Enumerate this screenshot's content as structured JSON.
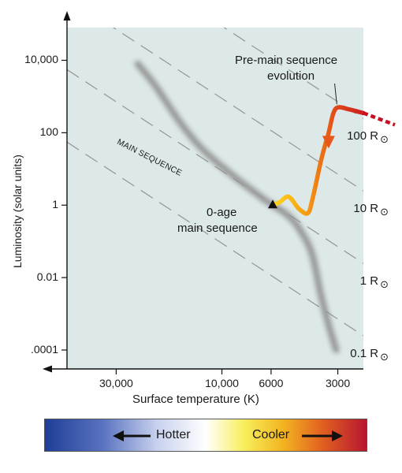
{
  "chart_data": {
    "type": "line",
    "xlabel": "Surface temperature (K)",
    "ylabel": "Luminosity (solar units)",
    "x_scale": "log, reversed",
    "y_scale": "log",
    "x_ticks": [
      {
        "value": 30000,
        "label": "30,000"
      },
      {
        "value": 10000,
        "label": "10,000"
      },
      {
        "value": 6000,
        "label": "6000"
      },
      {
        "value": 3000,
        "label": "3000"
      }
    ],
    "y_ticks": [
      {
        "value": 10000,
        "label": "10,000"
      },
      {
        "value": 100,
        "label": "100"
      },
      {
        "value": 1,
        "label": "1"
      },
      {
        "value": 0.01,
        "label": "0.01"
      },
      {
        "value": 0.0001,
        "label": ".0001"
      }
    ],
    "xlim": [
      50000,
      2300
    ],
    "ylim": [
      3e-05,
      80000
    ],
    "main_sequence": {
      "label": "MAIN SEQUENCE",
      "points": [
        {
          "temp": 24000,
          "lum": 8000
        },
        {
          "temp": 20000,
          "lum": 2000
        },
        {
          "temp": 15500,
          "lum": 200
        },
        {
          "temp": 12500,
          "lum": 40
        },
        {
          "temp": 9500,
          "lum": 9
        },
        {
          "temp": 6500,
          "lum": 1.5
        },
        {
          "temp": 5000,
          "lum": 0.5
        },
        {
          "temp": 4300,
          "lum": 0.15
        },
        {
          "temp": 3900,
          "lum": 0.04
        },
        {
          "temp": 3600,
          "lum": 0.004
        },
        {
          "temp": 3300,
          "lum": 0.0005
        },
        {
          "temp": 3050,
          "lum": 0.0001
        }
      ]
    },
    "radius_lines": [
      {
        "label": "100 R",
        "radius": 100
      },
      {
        "label": "10 R",
        "radius": 10
      },
      {
        "label": "1 R",
        "radius": 1
      },
      {
        "label": "0.1 R",
        "radius": 0.1
      }
    ],
    "radius_unit_symbol": "⊙",
    "evolution_track": {
      "label": "Pre-main sequence evolution",
      "points": [
        {
          "temp": 2300,
          "lum": 350
        },
        {
          "temp": 2700,
          "lum": 450
        },
        {
          "temp": 3000,
          "lum": 500
        },
        {
          "temp": 3150,
          "lum": 330
        },
        {
          "temp": 3300,
          "lum": 100
        },
        {
          "temp": 3550,
          "lum": 20
        },
        {
          "temp": 3900,
          "lum": 1.5
        },
        {
          "temp": 4100,
          "lum": 0.6
        },
        {
          "temp": 4500,
          "lum": 0.8
        },
        {
          "temp": 5000,
          "lum": 1.7
        },
        {
          "temp": 5500,
          "lum": 1.2
        },
        {
          "temp": 5900,
          "lum": 1
        }
      ]
    },
    "zero_age_point": {
      "temp": 5900,
      "lum": 1,
      "label": "0-age main sequence"
    }
  },
  "annotations": {
    "pre_ms_line1": "Pre-main sequence",
    "pre_ms_line2": "evolution",
    "zero_age_line1": "0-age",
    "zero_age_line2": "main sequence",
    "main_sequence": "MAIN SEQUENCE"
  },
  "colorbar": {
    "hotter": "Hotter",
    "cooler": "Cooler"
  }
}
